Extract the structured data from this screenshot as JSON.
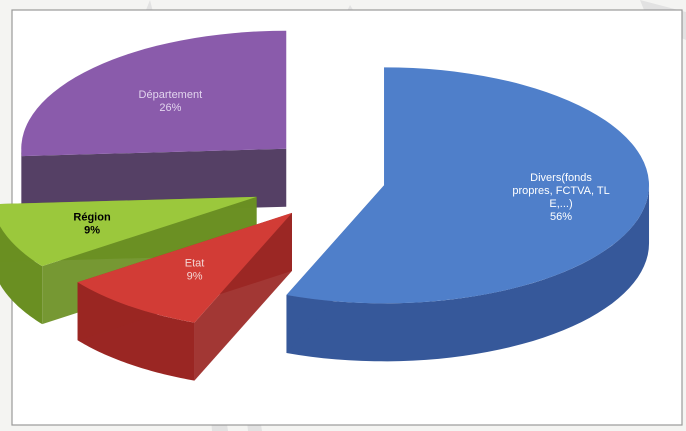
{
  "chart_data": {
    "type": "pie",
    "style": "3d-exploded",
    "title": "",
    "slices": [
      {
        "name": "Divers(fonds propres, FCTVA, TLE,...)",
        "label_lines": [
          "Divers(fonds",
          "propres, FCTVA, TL",
          "E,...)"
        ],
        "value": 56,
        "pct_label": "56%",
        "color": "#4f7fca",
        "side_color": "#36589a",
        "label_color": "#ffffff"
      },
      {
        "name": "Etat",
        "label_lines": [
          "Etat"
        ],
        "value": 9,
        "pct_label": "9%",
        "color": "#d23c36",
        "side_color": "#9a2623",
        "label_color": "#f3d6d4"
      },
      {
        "name": "Région",
        "label_lines": [
          "Région"
        ],
        "value": 9,
        "pct_label": "9%",
        "color": "#9bc83c",
        "side_color": "#6a8f22",
        "label_color": "#000000"
      },
      {
        "name": "Département",
        "label_lines": [
          "Département"
        ],
        "value": 26,
        "pct_label": "26%",
        "color": "#8a5bab",
        "side_color": "#463058",
        "label_color": "#e2d4ee"
      }
    ],
    "legend": "none"
  }
}
